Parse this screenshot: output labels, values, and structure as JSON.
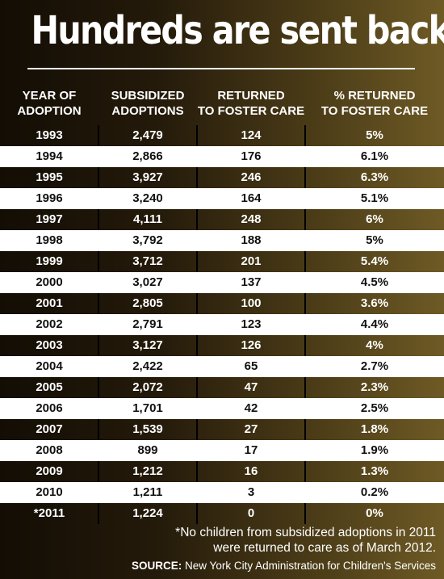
{
  "title": "Hundreds are sent back",
  "chart_data": {
    "type": "table",
    "columns": [
      "YEAR OF\nADOPTION",
      "SUBSIDIZED\nADOPTIONS",
      "RETURNED\nTO FOSTER CARE",
      "% RETURNED\nTO FOSTER CARE"
    ],
    "rows": [
      [
        "1993",
        "2,479",
        "124",
        "5%"
      ],
      [
        "1994",
        "2,866",
        "176",
        "6.1%"
      ],
      [
        "1995",
        "3,927",
        "246",
        "6.3%"
      ],
      [
        "1996",
        "3,240",
        "164",
        "5.1%"
      ],
      [
        "1997",
        "4,111",
        "248",
        "6%"
      ],
      [
        "1998",
        "3,792",
        "188",
        "5%"
      ],
      [
        "1999",
        "3,712",
        "201",
        "5.4%"
      ],
      [
        "2000",
        "3,027",
        "137",
        "4.5%"
      ],
      [
        "2001",
        "2,805",
        "100",
        "3.6%"
      ],
      [
        "2002",
        "2,791",
        "123",
        "4.4%"
      ],
      [
        "2003",
        "3,127",
        "126",
        "4%"
      ],
      [
        "2004",
        "2,422",
        "65",
        "2.7%"
      ],
      [
        "2005",
        "2,072",
        "47",
        "2.3%"
      ],
      [
        "2006",
        "1,701",
        "42",
        "2.5%"
      ],
      [
        "2007",
        "1,539",
        "27",
        "1.8%"
      ],
      [
        "2008",
        "899",
        "17",
        "1.9%"
      ],
      [
        "2009",
        "1,212",
        "16",
        "1.3%"
      ],
      [
        "2010",
        "1,211",
        "3",
        "0.2%"
      ],
      [
        "*2011",
        "1,224",
        "0",
        "0%"
      ]
    ]
  },
  "footnote": "*No children from subsidized adoptions in 2011\nwere returned to care as of March 2012.",
  "source_label": "SOURCE:",
  "source_text": "New York City Administration for Children's Services"
}
